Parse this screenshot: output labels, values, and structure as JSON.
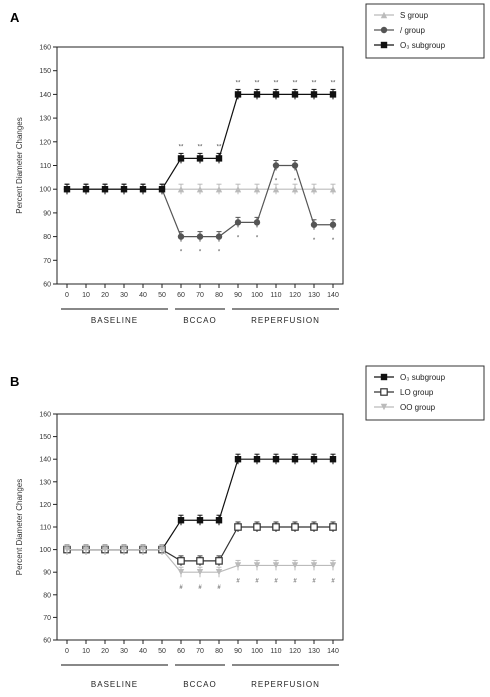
{
  "chart_data": [
    {
      "type": "line",
      "panel_label": "A",
      "ylabel": "Percent Diameter Changes",
      "xlabel": "",
      "x": [
        0,
        10,
        20,
        30,
        40,
        50,
        60,
        70,
        80,
        90,
        100,
        110,
        120,
        130,
        140
      ],
      "ylim": [
        60,
        160
      ],
      "yticks": [
        60,
        70,
        80,
        90,
        100,
        110,
        120,
        130,
        140,
        150,
        160
      ],
      "phases": [
        {
          "label": "BASELINE",
          "from": 0,
          "to": 50
        },
        {
          "label": "BCCAO",
          "from": 60,
          "to": 80
        },
        {
          "label": "REPERFUSION",
          "from": 90,
          "to": 140
        }
      ],
      "legend_position": "top-right",
      "series": [
        {
          "name": "S group",
          "marker": "triangle",
          "color": "#bbbbbb",
          "values": [
            100,
            100,
            100,
            100,
            100,
            100,
            100,
            100,
            100,
            100,
            100,
            100,
            100,
            100,
            100
          ],
          "annotations": []
        },
        {
          "name": "/ group",
          "marker": "circle",
          "color": "#555555",
          "values": [
            100,
            100,
            100,
            100,
            100,
            100,
            80,
            80,
            80,
            86,
            86,
            110,
            110,
            85,
            85
          ],
          "annotations": [
            "",
            "",
            "",
            "",
            "",
            "",
            "*",
            "*",
            "*",
            "*",
            "*",
            "*",
            "*",
            "*",
            "*"
          ]
        },
        {
          "name": "O₃ subgroup",
          "marker": "square",
          "color": "#111111",
          "values": [
            100,
            100,
            100,
            100,
            100,
            100,
            113,
            113,
            113,
            140,
            140,
            140,
            140,
            140,
            140
          ],
          "annotations": [
            "",
            "",
            "",
            "",
            "",
            "",
            "**",
            "**",
            "**",
            "**",
            "**",
            "**",
            "**",
            "**",
            "**"
          ]
        }
      ]
    },
    {
      "type": "line",
      "panel_label": "B",
      "ylabel": "Percent Diameter Changes",
      "xlabel": "",
      "x": [
        0,
        10,
        20,
        30,
        40,
        50,
        60,
        70,
        80,
        90,
        100,
        110,
        120,
        130,
        140
      ],
      "ylim": [
        60,
        160
      ],
      "yticks": [
        60,
        70,
        80,
        90,
        100,
        110,
        120,
        130,
        140,
        150,
        160
      ],
      "phases": [
        {
          "label": "BASELINE",
          "from": 0,
          "to": 50
        },
        {
          "label": "BCCAO",
          "from": 60,
          "to": 80
        },
        {
          "label": "REPERFUSION",
          "from": 90,
          "to": 140
        }
      ],
      "legend_position": "top-right",
      "series": [
        {
          "name": "O₃ subgroup",
          "marker": "square",
          "color": "#111111",
          "values": [
            100,
            100,
            100,
            100,
            100,
            100,
            113,
            113,
            113,
            140,
            140,
            140,
            140,
            140,
            140
          ],
          "annotations": []
        },
        {
          "name": "LO group",
          "marker": "open-square",
          "color": "#333333",
          "values": [
            100,
            100,
            100,
            100,
            100,
            100,
            95,
            95,
            95,
            110,
            110,
            110,
            110,
            110,
            110
          ],
          "annotations": []
        },
        {
          "name": "OO group",
          "marker": "down-triangle",
          "color": "#bbbbbb",
          "values": [
            100,
            100,
            100,
            100,
            100,
            100,
            90,
            90,
            90,
            93,
            93,
            93,
            93,
            93,
            93
          ],
          "annotations": [
            "",
            "",
            "",
            "",
            "",
            "",
            "#",
            "#",
            "#",
            "#",
            "#",
            "#",
            "#",
            "#",
            "#"
          ]
        }
      ]
    }
  ]
}
